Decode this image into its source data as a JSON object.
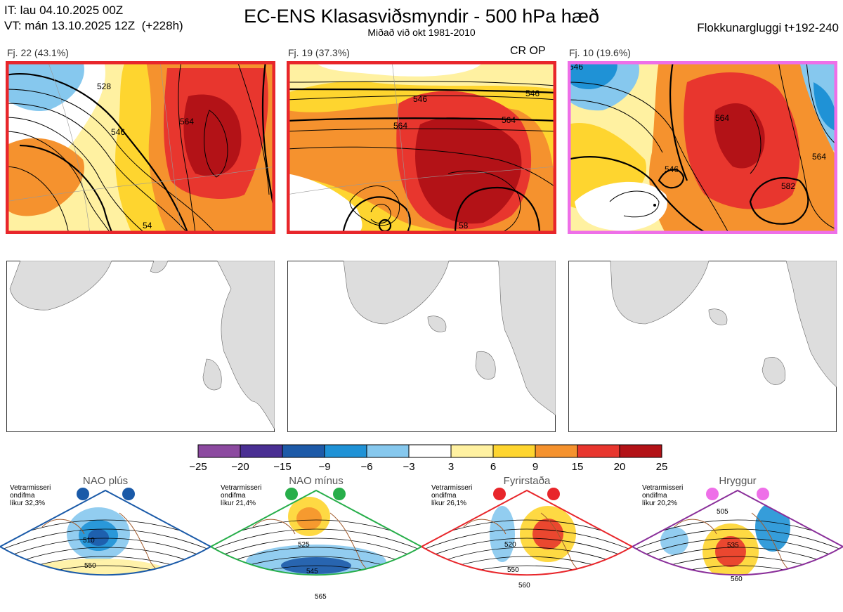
{
  "header": {
    "it_line": "IT: lau 04.10.2025 00Z",
    "vt_line": "VT: mán 13.10.2025 12Z  (+228h)",
    "title": "EC-ENS Klasasviðsmyndir - 500 hPa hæð",
    "subtitle": "Miðað við okt 1981-2010",
    "window": "Flokkunargluggi t+192-240"
  },
  "clusters": [
    {
      "label": "Fj. 22 (43.1%)",
      "frame_color": "#e8262b",
      "contours": [
        "528",
        "546",
        "564",
        "54"
      ]
    },
    {
      "label": "Fj. 19 (37.3%)",
      "frame_color": "#e8262b",
      "extra": "CR OP",
      "contours": [
        "546",
        "564",
        "546",
        "564",
        "58"
      ]
    },
    {
      "label": "Fj. 10 (19.6%)",
      "frame_color": "#ee6fe8",
      "contours": [
        "546",
        "564",
        "546",
        "582",
        "564"
      ]
    }
  ],
  "colorbar": {
    "ticks": [
      "−25",
      "−20",
      "−15",
      "−9",
      "−6",
      "−3",
      "3",
      "6",
      "9",
      "15",
      "20",
      "25"
    ],
    "colors": [
      "#8c4aa0",
      "#4a2f93",
      "#1d5aa8",
      "#1f92d6",
      "#86c8ee",
      "#ffffff",
      "#fff1a1",
      "#fed52f",
      "#f5922e",
      "#e8362e",
      "#b31217"
    ]
  },
  "regimes": [
    {
      "title": "NAO plús",
      "note": "Vetrarmisseri\nondifma\nlíkur 32,3%",
      "color": "#1a5aa8",
      "frame": "#1a5aa8",
      "labels": [
        "510",
        "550"
      ]
    },
    {
      "title": "NAO mínus",
      "note": "Vetrarmisseri\nondifma\nlíkur 21,4%",
      "color": "#27ae4a",
      "frame": "#27ae4a",
      "labels": [
        "525",
        "545",
        "565"
      ]
    },
    {
      "title": "Fyrirstaða",
      "note": "Vetrarmisseri\nondifma\nlíkur 26,1%",
      "color": "#e8262b",
      "frame": "#e8262b",
      "labels": [
        "520",
        "550",
        "560"
      ]
    },
    {
      "title": "Hryggur",
      "note": "Vetrarmisseri\nondifma\nlíkur 20,2%",
      "color": "#ee6fe8",
      "frame": "#8a2f9a",
      "labels": [
        "505",
        "535",
        "560"
      ]
    }
  ]
}
